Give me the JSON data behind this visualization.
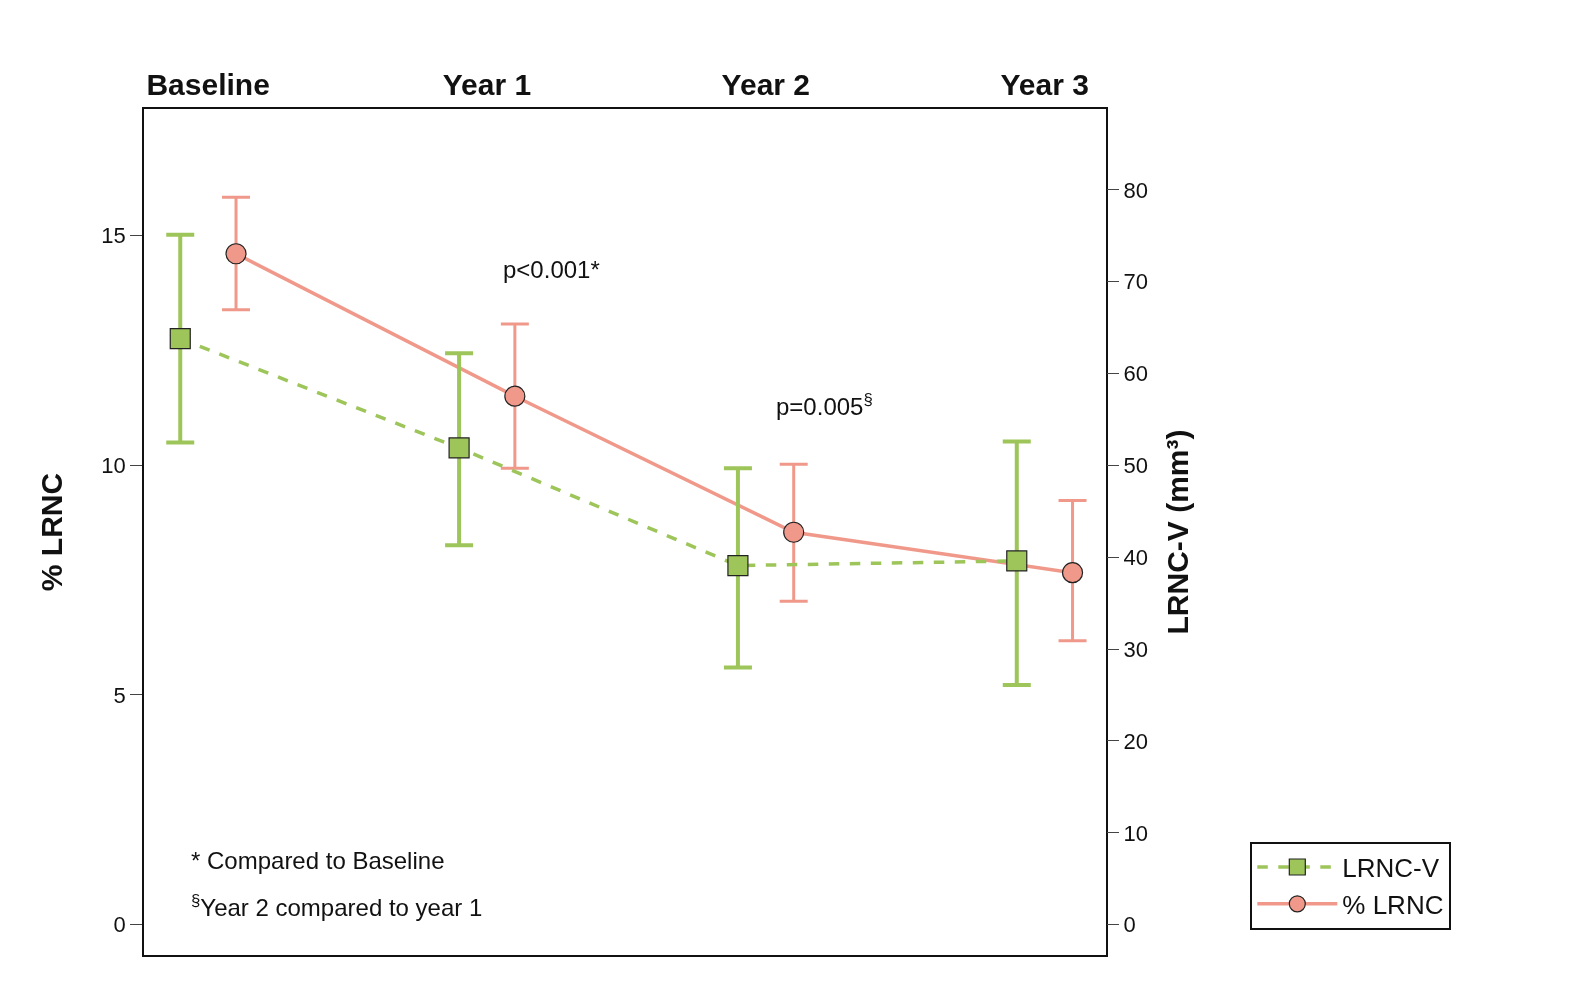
{
  "chart_data": {
    "type": "line",
    "categories": [
      "Baseline",
      "Year 1",
      "Year 2",
      "Year 3"
    ],
    "ylabel": "% LRNC",
    "y2label": "LRNC-V (mm³)",
    "ylim": [
      -0.66,
      17.75
    ],
    "yticks": [
      0,
      5,
      10,
      15
    ],
    "y2lim": [
      -3.3,
      88.8
    ],
    "y2ticks": [
      0,
      10,
      20,
      30,
      40,
      50,
      60,
      70,
      80
    ],
    "series": [
      {
        "name": "LRNC-V",
        "color": "#9dc55a",
        "axis": "y2",
        "marker": "square",
        "line_style": "dashed",
        "values": [
          63.8,
          51.9,
          39.1,
          39.6
        ],
        "errors": [
          [
            52.5,
            75.1
          ],
          [
            41.3,
            62.2
          ],
          [
            28.0,
            49.7
          ],
          [
            26.1,
            52.6
          ]
        ]
      },
      {
        "name": "% LRNC",
        "color": "#f0998a",
        "axis": "y",
        "marker": "circle",
        "line_style": "solid",
        "values": [
          14.6,
          11.5,
          8.54,
          7.66
        ],
        "errors": [
          [
            13.38,
            15.83
          ],
          [
            9.93,
            13.07
          ],
          [
            7.04,
            10.02
          ],
          [
            6.18,
            9.23
          ]
        ]
      }
    ],
    "annotations": [
      "p<0.001*",
      "p=0.005$^{§}$",
      "* Compared to Baseline",
      "$^{§}$Year 2 compared to year 1"
    ],
    "legend": "bottom right"
  }
}
